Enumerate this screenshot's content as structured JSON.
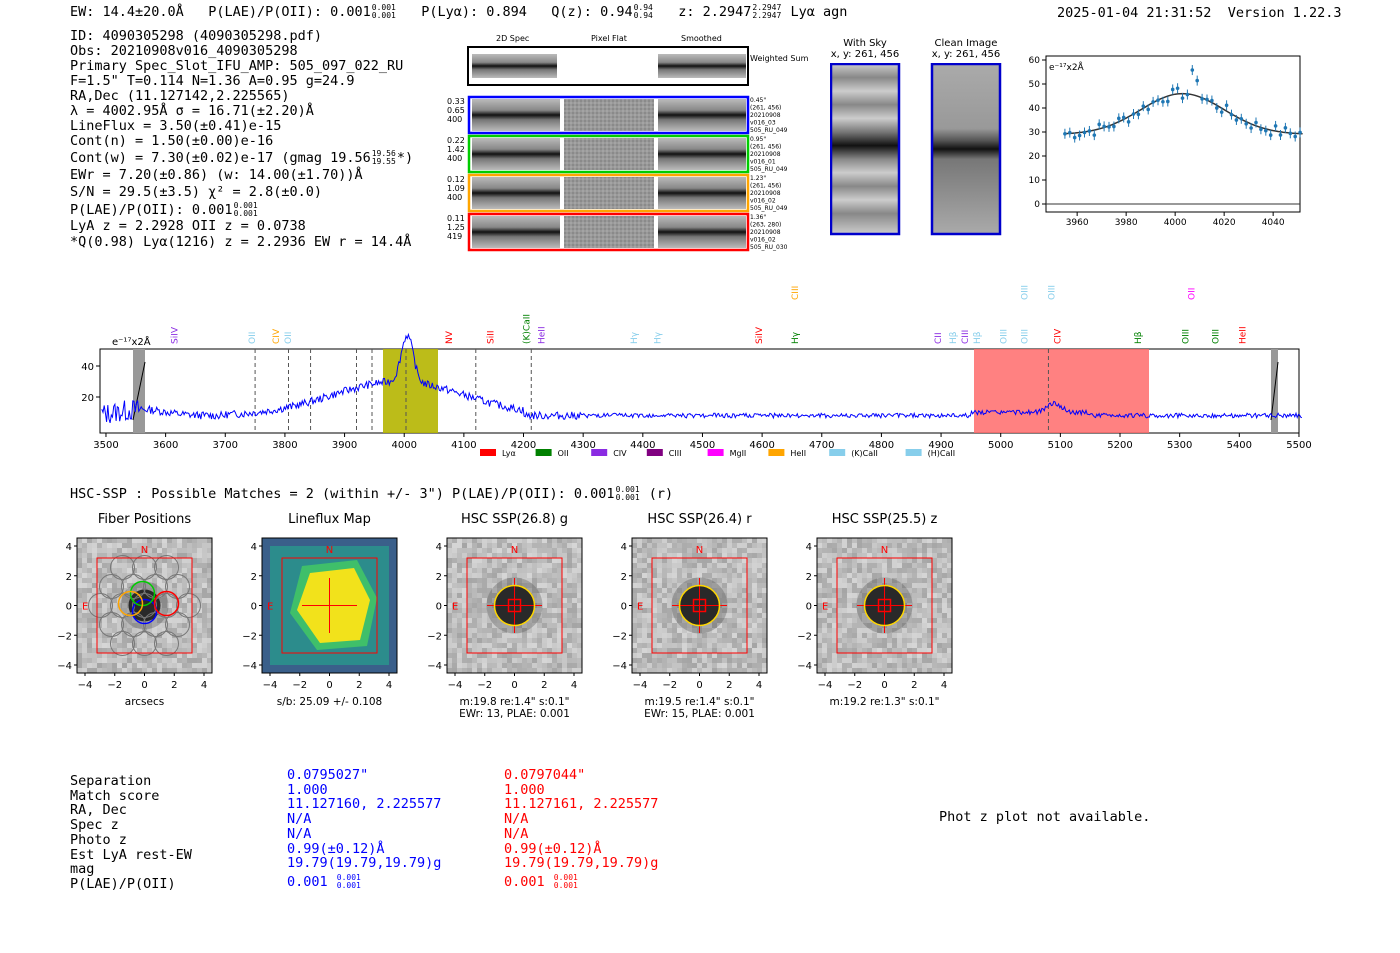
{
  "header": {
    "ew": "EW: 14.4±20.0Å",
    "plae_label": "P(LAE)/P(OII): 0.001",
    "plae_hi": "0.001",
    "plae_lo": "0.001",
    "plya": "P(Lyα): 0.894",
    "qz": "Q(z): 0.94",
    "qz_hi": "0.94",
    "qz_lo": "0.94",
    "z": "z: 2.2947",
    "z_hi": "2.2947",
    "z_lo": "2.2947",
    "line": "Lyα  agn",
    "timestamp": "2025-01-04 21:31:52",
    "version": "Version 1.22.3"
  },
  "info": {
    "l1": "ID: 4090305298 (4090305298.pdf)",
    "l2": "Obs: 20210908v016_4090305298",
    "l3": "Primary Spec_Slot_IFU_AMP: 505_097_022_RU",
    "l4": "F=1.5\"  T=0.114  N=1.36  A=0.95  g=24.9",
    "l5": "RA,Dec (11.127142,2.225565)",
    "l6": "λ = 4002.95Å  σ = 16.71(±2.20)Å",
    "l7": "LineFlux = 3.50(±0.41)e-15",
    "l8": "Cont(n) = 1.50(±0.00)e-16",
    "l9": "Cont(w) = 7.30(±0.02)e-17 (gmag 19.56",
    "l9_hi": "19.56",
    "l9_lo": "19.55",
    "l9_end": "*)",
    "l10": "EWr = 7.20(±0.86) (w: 14.00(±1.70))Å",
    "l11": "S/N = 29.5(±3.5)  χ² = 2.8(±0.0)",
    "l12": "P(LAE)/P(OII): 0.001",
    "l12_hi": "0.001",
    "l12_lo": "0.001",
    "l13": "LyA z = 2.2928  OII z = 0.0738",
    "l14": "*Q(0.98) Lyα(1216) z = 2.2936  EW r = 14.4Å"
  },
  "cutouts": {
    "headers": [
      "2D Spec",
      "Pixel Flat",
      "Smoothed"
    ],
    "weighted": "Weighted Sum",
    "rows": [
      {
        "left": [
          "0.33",
          "0.65",
          "400"
        ],
        "right": [
          "0.45\"",
          "(261, 456)",
          "20210908",
          "v016_03",
          "505_RU_049"
        ],
        "color": "#0000ff"
      },
      {
        "left": [
          "0.22",
          "1.42",
          "400"
        ],
        "right": [
          "0.95\"",
          "(261, 456)",
          "20210908",
          "v016_01",
          "505_RU_049"
        ],
        "color": "#00cc00"
      },
      {
        "left": [
          "0.12",
          "1.09",
          "400"
        ],
        "right": [
          "1.23\"",
          "(261, 456)",
          "20210908",
          "v016_02",
          "505_RU_049"
        ],
        "color": "#ffa500"
      },
      {
        "left": [
          "0.11",
          "1.25",
          "419"
        ],
        "right": [
          "1.36\"",
          "(263, 280)",
          "20210908",
          "v016_02",
          "505_RU_030"
        ],
        "color": "#ff0000"
      }
    ]
  },
  "sky": {
    "with_sky": "With Sky",
    "with_sky_xy": "x, y: 261, 456",
    "clean": "Clean Image",
    "clean_xy": "x, y: 261, 456"
  },
  "fit_plot": {
    "unit": "e⁻¹⁷x2Å",
    "yticks": [
      "60",
      "50",
      "40",
      "30",
      "20",
      "10",
      "0"
    ],
    "xticks": [
      "3960",
      "3980",
      "4000",
      "4020",
      "4040"
    ]
  },
  "spectrum": {
    "unit": "e⁻¹⁷x2Å",
    "yticks": [
      "40",
      "20"
    ],
    "xticks": [
      "3500",
      "3600",
      "3700",
      "3800",
      "3900",
      "4000",
      "4100",
      "4200",
      "4300",
      "4400",
      "4500",
      "4600",
      "4700",
      "4800",
      "4900",
      "5000",
      "5100",
      "5200",
      "5300",
      "5400",
      "5500"
    ],
    "line_labels": [
      {
        "t": "SiIV",
        "c": "#8a2be2"
      },
      {
        "t": "OII",
        "c": "#87ceeb"
      },
      {
        "t": "CIV",
        "c": "#ffa500"
      },
      {
        "t": "OII",
        "c": "#87ceeb"
      },
      {
        "t": "NV",
        "c": "#ff0000"
      },
      {
        "t": "SiII",
        "c": "#ff0000"
      },
      {
        "t": "(K)CaII",
        "c": "#008000"
      },
      {
        "t": "HeII",
        "c": "#8a2be2"
      },
      {
        "t": "Hγ",
        "c": "#87ceeb"
      },
      {
        "t": "Hγ",
        "c": "#87ceeb"
      },
      {
        "t": "SiIV",
        "c": "#ff0000"
      },
      {
        "t": "CIII",
        "c": "#ffa500"
      },
      {
        "t": "Hγ",
        "c": "#008000"
      },
      {
        "t": "CII",
        "c": "#8a2be2"
      },
      {
        "t": "Hβ",
        "c": "#87ceeb"
      },
      {
        "t": "CIII",
        "c": "#8a2be2"
      },
      {
        "t": "Hβ",
        "c": "#87ceeb"
      },
      {
        "t": "OIII",
        "c": "#87ceeb"
      },
      {
        "t": "OIII",
        "c": "#87ceeb"
      },
      {
        "t": "OIII",
        "c": "#87ceeb"
      },
      {
        "t": "CIV",
        "c": "#ff0000"
      },
      {
        "t": "OIII",
        "c": "#87ceeb"
      },
      {
        "t": "Hβ",
        "c": "#008000"
      },
      {
        "t": "OII",
        "c": "#ff00ff"
      },
      {
        "t": "OIII",
        "c": "#008000"
      },
      {
        "t": "OIII",
        "c": "#008000"
      },
      {
        "t": "HeII",
        "c": "#ff0000"
      }
    ],
    "legend": [
      {
        "label": "Lyα",
        "color": "#ff0000"
      },
      {
        "label": "OII",
        "color": "#008000"
      },
      {
        "label": "CIV",
        "color": "#8a2be2"
      },
      {
        "label": "CIII",
        "color": "#800080"
      },
      {
        "label": "MgII",
        "color": "#ff00ff"
      },
      {
        "label": "HeII",
        "color": "#ffa500"
      },
      {
        "label": "(K)CaII",
        "color": "#87ceeb"
      },
      {
        "label": "(H)CaII",
        "color": "#87ceeb"
      }
    ]
  },
  "hsc": {
    "summary": "HSC-SSP : Possible Matches = 2 (within +/- 3\")  P(LAE)/P(OII): 0.001",
    "summary_hi": "0.001",
    "summary_lo": "0.001",
    "summary_end": "(r)",
    "panels": [
      {
        "title": "Fiber Positions",
        "cap1": "arcsecs",
        "cap2": ""
      },
      {
        "title": "Lineflux Map",
        "cap1": "s/b: 25.09 +/- 0.108",
        "cap2": ""
      },
      {
        "title": "HSC SSP(26.8) g",
        "cap1": "m:19.8  re:1.4\"  s:0.1\"",
        "cap2": "EWr: 13, PLAE: 0.001"
      },
      {
        "title": "HSC SSP(26.4) r",
        "cap1": "m:19.5  re:1.4\"  s:0.1\"",
        "cap2": "EWr: 15, PLAE: 0.001"
      },
      {
        "title": "HSC SSP(25.5) z",
        "cap1": "m:19.2  re:1.3\"  s:0.1\"",
        "cap2": ""
      }
    ],
    "axis_ticks": [
      "4",
      "2",
      "0",
      "−2",
      "−4"
    ],
    "n_label": "N",
    "e_label": "E"
  },
  "matches": {
    "labels": [
      "Separation",
      "Match score",
      "RA, Dec",
      "Spec z",
      "Photo z",
      "Est LyA rest-EW",
      "mag",
      "P(LAE)/P(OII)"
    ],
    "blue": [
      "0.0795027\"",
      "1.000",
      "11.127160, 2.225577",
      "N/A",
      "N/A",
      "0.99(±0.12)Å",
      "19.79(19.79,19.79)g",
      "0.001"
    ],
    "blue_hi": "0.001",
    "blue_lo": "0.001",
    "red": [
      "0.0797044\"",
      "1.000",
      "11.127161, 2.225577",
      "N/A",
      "N/A",
      "0.99(±0.12)Å",
      "19.79(19.79,19.79)g",
      "0.001"
    ],
    "red_hi": "0.001",
    "red_lo": "0.001",
    "photz": "Phot z plot not available."
  }
}
